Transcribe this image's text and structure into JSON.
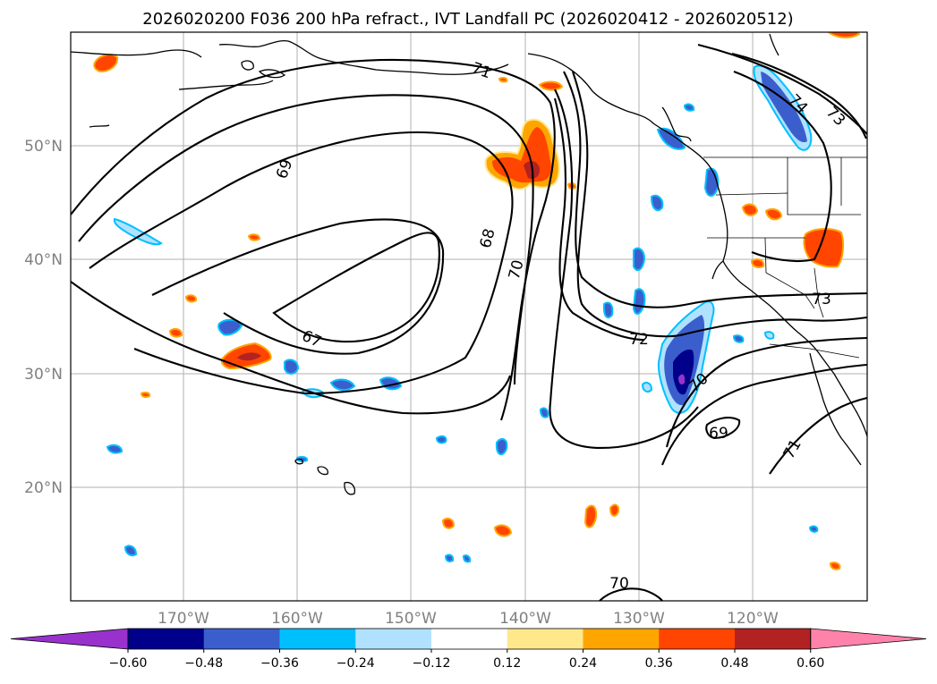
{
  "title": "2026020200 F036 200 hPa refract., IVT Landfall PC (2026020412 - 2026020512)",
  "lon_labels": [
    "170°W",
    "160°W",
    "150°W",
    "140°W",
    "130°W",
    "120°W"
  ],
  "lat_labels": [
    "50°N",
    "40°N",
    "30°N",
    "20°N"
  ],
  "contour_labels": [
    "71",
    "69",
    "68",
    "70",
    "67",
    "72",
    "70",
    "69",
    "71",
    "74",
    "73",
    "73",
    "70"
  ],
  "colorbar": {
    "ticks": [
      "−0.60",
      "−0.48",
      "−0.36",
      "−0.24",
      "−0.12",
      "0.12",
      "0.24",
      "0.36",
      "0.48",
      "0.60"
    ],
    "colors": [
      "#9932cc",
      "#00008b",
      "#3a5fcd",
      "#00bfff",
      "#b0e2ff",
      "#ffffff",
      "#ffe88c",
      "#ffa500",
      "#ff4500",
      "#b22222",
      "#ff82ab"
    ]
  }
}
